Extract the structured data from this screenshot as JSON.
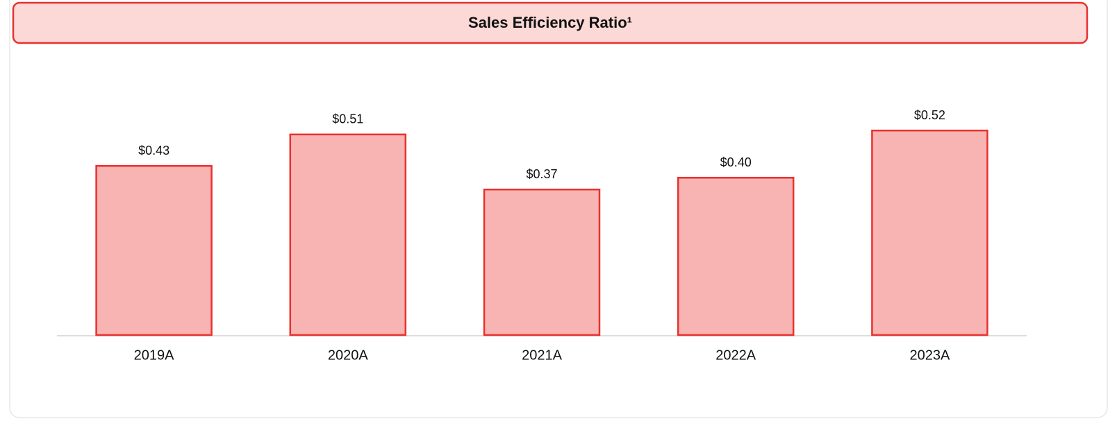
{
  "chart_data": {
    "type": "bar",
    "title": "Sales Efficiency Ratio¹",
    "categories": [
      "2019A",
      "2020A",
      "2021A",
      "2022A",
      "2023A"
    ],
    "values": [
      0.43,
      0.51,
      0.37,
      0.4,
      0.52
    ],
    "value_labels": [
      "$0.43",
      "$0.51",
      "$0.37",
      "$0.40",
      "$0.52"
    ],
    "color": "#f8b4b2",
    "edge_color": "#e8312f"
  }
}
